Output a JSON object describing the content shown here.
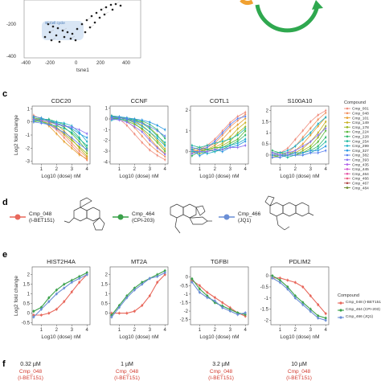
{
  "panels": {
    "c_letter": "c",
    "d_letter": "d",
    "e_letter": "e",
    "f_letter": "f"
  },
  "tsne": {
    "xlabel": "tsne1",
    "ticks_x": [
      "-400",
      "-200",
      "0",
      "200",
      "400"
    ],
    "ticks_y": [
      "-200",
      "-400"
    ],
    "cluster_label": "S/ Cell cycle"
  },
  "colors": {
    "cmp048": "#e8685c",
    "cmp464": "#3aa14a",
    "cmp466": "#6b8fd6",
    "arrow_green": "#2fa84f",
    "arrow_orange": "#f0a030",
    "dose_red": "#d23b2f"
  },
  "compound_legend": {
    "title": "Compound",
    "entries": [
      "Cmp_001",
      "Cmp_048",
      "Cmp_101",
      "Cmp_149",
      "Cmp_178",
      "Cmp_224",
      "Cmp_228",
      "Cmp_254",
      "Cmp_299",
      "Cmp_327",
      "Cmp_382",
      "Cmp_393",
      "Cmp_435",
      "Cmp_445",
      "Cmp_464",
      "Cmp_466",
      "Cmp_467",
      "Cmp_484"
    ],
    "colors": [
      "#f08a7a",
      "#f09060",
      "#e7a030",
      "#c9b020",
      "#98b820",
      "#58b83a",
      "#2eb86a",
      "#20b8a0",
      "#20b0c8",
      "#2a98e0",
      "#5a80f0",
      "#8a70f0",
      "#b060e8",
      "#d055d0",
      "#e455a8",
      "#ec5a82",
      "#b04a4a",
      "#6a8a2a"
    ]
  },
  "legend_e": {
    "title": "Compound",
    "entries": [
      "Cmp_048 (I-BET151)",
      "Cmp_464 (CPI-203)",
      "Cmp_466 (JQ1)"
    ]
  },
  "compounds_d": [
    {
      "name": "Cmp_048",
      "alias": "(I-BET151)"
    },
    {
      "name": "Cmp_464",
      "alias": "(CPI-203)"
    },
    {
      "name": "Cmp_466",
      "alias": "(JQ1)"
    }
  ],
  "panel_f": [
    {
      "dose": "0.32 µM",
      "name": "Cmp_048",
      "alias": "(I-BET151)"
    },
    {
      "dose": "1 µM",
      "name": "Cmp_048",
      "alias": "(I-BET151)"
    },
    {
      "dose": "3.2 µM",
      "name": "Cmp_048",
      "alias": "(I-BET151)"
    },
    {
      "dose": "10 µM",
      "name": "Cmp_048",
      "alias": "(I-BET151)"
    }
  ],
  "chart_data": [
    {
      "type": "line",
      "panel": "c",
      "title": "CDC20",
      "xlabel": "Log10 (dose) nM",
      "ylabel": "Log2 fold change",
      "xlim": [
        0.4,
        4.2
      ],
      "ylim": [
        -3.2,
        1.2
      ],
      "xticks": [
        1,
        2,
        3,
        4
      ],
      "yticks": [
        1,
        0,
        -1,
        -2,
        -3
      ],
      "x": [
        0.5,
        1,
        1.5,
        2,
        2.5,
        3,
        3.5,
        4
      ],
      "series": [
        [
          0.5,
          0.2,
          -0.2,
          -0.6,
          -1.2,
          -1.8,
          -2.4,
          -2.9
        ],
        [
          0.4,
          0.3,
          0.0,
          -0.5,
          -1.0,
          -1.6,
          -2.2,
          -2.7
        ],
        [
          0.3,
          0.1,
          -0.3,
          -0.9,
          -1.5,
          -2.0,
          -2.5,
          -2.8
        ],
        [
          0.2,
          0.2,
          0.1,
          -0.2,
          -0.7,
          -1.3,
          -2.0,
          -2.6
        ],
        [
          0.1,
          0.0,
          -0.1,
          -0.4,
          -0.9,
          -1.4,
          -1.9,
          -2.4
        ],
        [
          0.0,
          0.1,
          0.0,
          -0.1,
          -0.4,
          -0.9,
          -1.5,
          -2.2
        ],
        [
          0.3,
          0.2,
          0.2,
          0.0,
          -0.2,
          -0.6,
          -1.2,
          -2.0
        ],
        [
          0.2,
          0.0,
          -0.2,
          -0.3,
          -0.5,
          -0.8,
          -1.3,
          -1.8
        ],
        [
          0.1,
          0.2,
          0.1,
          0.0,
          -0.1,
          -0.3,
          -0.8,
          -1.5
        ],
        [
          0.4,
          0.3,
          0.1,
          -0.1,
          -0.3,
          -0.5,
          -0.9,
          -1.2
        ],
        [
          0.0,
          -0.1,
          -0.2,
          -0.5,
          -0.8,
          -1.2,
          -1.7,
          -2.1
        ],
        [
          0.2,
          0.1,
          0.0,
          -0.2,
          -0.3,
          -0.4,
          -0.6,
          -0.9
        ]
      ]
    },
    {
      "type": "line",
      "panel": "c",
      "title": "CCNF",
      "xlabel": "Log10 (dose) nM",
      "ylabel": "",
      "xlim": [
        0.4,
        4.2
      ],
      "ylim": [
        -4.2,
        1.2
      ],
      "xticks": [
        1,
        2,
        3,
        4
      ],
      "yticks": [
        1,
        0,
        -1,
        -2,
        -3,
        -4
      ],
      "x": [
        0.5,
        1,
        1.5,
        2,
        2.5,
        3,
        3.5,
        4
      ],
      "series": [
        [
          0.3,
          0.0,
          -0.6,
          -1.4,
          -2.2,
          -2.9,
          -3.4,
          -3.8
        ],
        [
          0.2,
          0.2,
          -0.2,
          -0.8,
          -1.6,
          -2.4,
          -3.0,
          -3.5
        ],
        [
          0.1,
          0.1,
          0.0,
          -0.4,
          -1.0,
          -1.8,
          -2.6,
          -3.2
        ],
        [
          0.0,
          0.0,
          -0.1,
          -0.2,
          -0.6,
          -1.2,
          -2.0,
          -2.8
        ],
        [
          0.2,
          0.1,
          0.1,
          0.0,
          -0.3,
          -0.8,
          -1.5,
          -2.4
        ],
        [
          0.1,
          0.0,
          -0.2,
          -0.5,
          -0.9,
          -1.5,
          -2.2,
          -3.0
        ],
        [
          0.0,
          0.1,
          0.0,
          -0.1,
          -0.2,
          -0.5,
          -1.0,
          -1.8
        ],
        [
          0.3,
          0.2,
          0.1,
          -0.1,
          -0.4,
          -0.9,
          -1.6,
          -2.2
        ],
        [
          -0.1,
          0.0,
          -0.1,
          -0.3,
          -0.7,
          -1.2,
          -1.8,
          -2.5
        ],
        [
          0.2,
          0.2,
          0.1,
          0.0,
          -0.1,
          -0.3,
          -0.6,
          -1.0
        ],
        [
          0.1,
          0.1,
          0.0,
          -0.2,
          -0.4,
          -0.7,
          -1.1,
          -1.6
        ],
        [
          0.0,
          -0.1,
          -0.3,
          -0.7,
          -1.2,
          -2.0,
          -2.7,
          -3.3
        ]
      ]
    },
    {
      "type": "line",
      "panel": "c",
      "title": "COTL1",
      "xlabel": "Log10 (dose) nM",
      "ylabel": "",
      "xlim": [
        0.4,
        4.2
      ],
      "ylim": [
        -0.6,
        2.2
      ],
      "xticks": [
        1,
        2,
        3,
        4
      ],
      "yticks": [
        2,
        1,
        0
      ],
      "x": [
        0.5,
        1,
        1.5,
        2,
        2.5,
        3,
        3.5,
        4
      ],
      "series": [
        [
          0.0,
          0.1,
          0.3,
          0.6,
          1.0,
          1.4,
          1.7,
          1.9
        ],
        [
          0.1,
          0.0,
          0.2,
          0.4,
          0.8,
          1.2,
          1.5,
          1.8
        ],
        [
          -0.1,
          0.1,
          0.1,
          0.3,
          0.6,
          1.0,
          1.3,
          1.6
        ],
        [
          0.2,
          0.1,
          0.0,
          0.2,
          0.4,
          0.7,
          1.1,
          1.4
        ],
        [
          0.0,
          -0.1,
          0.0,
          0.1,
          0.3,
          0.5,
          0.9,
          1.2
        ],
        [
          0.1,
          0.2,
          0.1,
          0.2,
          0.2,
          0.4,
          0.6,
          1.0
        ],
        [
          -0.2,
          0.0,
          0.1,
          0.0,
          0.1,
          0.3,
          0.5,
          0.8
        ],
        [
          0.3,
          0.2,
          0.3,
          0.4,
          0.5,
          0.6,
          0.8,
          1.1
        ],
        [
          0.0,
          0.0,
          -0.1,
          0.0,
          0.2,
          0.3,
          0.4,
          0.6
        ],
        [
          0.1,
          -0.2,
          0.0,
          0.1,
          0.0,
          0.2,
          0.3,
          0.5
        ],
        [
          0.2,
          0.1,
          0.2,
          0.5,
          0.9,
          1.3,
          1.6,
          1.7
        ],
        [
          -0.1,
          0.0,
          0.0,
          0.1,
          0.1,
          0.2,
          0.2,
          0.3
        ]
      ]
    },
    {
      "type": "line",
      "panel": "c",
      "title": "S100A10",
      "xlabel": "Log10 (dose) nM",
      "ylabel": "",
      "xlim": [
        0.4,
        4.2
      ],
      "ylim": [
        -0.4,
        2.2
      ],
      "xticks": [
        1,
        2,
        3,
        4
      ],
      "yticks": [
        2,
        1.5,
        1,
        0.5,
        0
      ],
      "x": [
        0.5,
        1,
        1.5,
        2,
        2.5,
        3,
        3.5,
        4
      ],
      "series": [
        [
          0.0,
          0.1,
          0.3,
          0.7,
          1.1,
          1.5,
          1.8,
          2.0
        ],
        [
          0.1,
          0.0,
          0.1,
          0.4,
          0.8,
          1.2,
          1.6,
          1.9
        ],
        [
          0.0,
          0.0,
          0.0,
          0.2,
          0.5,
          0.9,
          1.3,
          1.7
        ],
        [
          -0.1,
          0.0,
          0.0,
          0.1,
          0.3,
          0.6,
          1.0,
          1.5
        ],
        [
          0.1,
          0.1,
          0.0,
          0.0,
          0.2,
          0.4,
          0.8,
          1.3
        ],
        [
          0.0,
          -0.1,
          0.0,
          0.0,
          0.1,
          0.3,
          0.6,
          1.1
        ],
        [
          0.2,
          0.1,
          0.1,
          0.1,
          0.1,
          0.2,
          0.4,
          0.8
        ],
        [
          0.0,
          0.0,
          -0.1,
          0.0,
          0.0,
          0.1,
          0.3,
          0.6
        ],
        [
          0.1,
          0.1,
          0.2,
          0.4,
          0.7,
          1.0,
          1.4,
          1.7
        ],
        [
          0.0,
          0.0,
          0.0,
          0.1,
          0.1,
          0.2,
          0.2,
          0.4
        ],
        [
          -0.1,
          -0.1,
          0.0,
          0.0,
          0.0,
          0.1,
          0.1,
          0.2
        ],
        [
          0.1,
          0.0,
          0.1,
          0.2,
          0.4,
          0.6,
          0.9,
          1.2
        ]
      ]
    },
    {
      "type": "line",
      "panel": "e",
      "title": "HIST2H4A",
      "xlabel": "Log10 (dose) nM",
      "ylabel": "Log2 fold change",
      "xlim": [
        0.4,
        4.2
      ],
      "ylim": [
        -0.6,
        2.4
      ],
      "xticks": [
        1,
        2,
        3,
        4
      ],
      "yticks": [
        2,
        1.5,
        1,
        0.5,
        0,
        -0.5
      ],
      "x": [
        0.5,
        1,
        1.5,
        2,
        2.5,
        3,
        3.5,
        4
      ],
      "series": [
        {
          "name": "Cmp_048",
          "values": [
            -0.1,
            -0.1,
            0.0,
            0.2,
            0.6,
            1.1,
            1.6,
            2.0
          ]
        },
        {
          "name": "Cmp_464",
          "values": [
            0.1,
            0.3,
            0.8,
            1.2,
            1.5,
            1.7,
            1.9,
            2.1
          ]
        },
        {
          "name": "Cmp_466",
          "values": [
            -0.2,
            0.2,
            0.6,
            1.0,
            1.3,
            1.6,
            1.8,
            2.0
          ]
        }
      ]
    },
    {
      "type": "line",
      "panel": "e",
      "title": "MT2A",
      "xlabel": "Log10 (dose) nM",
      "ylabel": "",
      "xlim": [
        0.4,
        4.2
      ],
      "ylim": [
        -0.6,
        2.4
      ],
      "xticks": [
        1,
        2,
        3,
        4
      ],
      "yticks": [
        2,
        1.5,
        1,
        0.5,
        0
      ],
      "x": [
        0.5,
        1,
        1.5,
        2,
        2.5,
        3,
        3.5,
        4
      ],
      "series": [
        {
          "name": "Cmp_048",
          "values": [
            0.0,
            0.0,
            0.0,
            0.1,
            0.4,
            0.9,
            1.6,
            2.0
          ]
        },
        {
          "name": "Cmp_464",
          "values": [
            -0.1,
            0.4,
            0.9,
            1.3,
            1.6,
            1.8,
            2.0,
            2.2
          ]
        },
        {
          "name": "Cmp_466",
          "values": [
            -0.2,
            0.3,
            0.8,
            1.2,
            1.5,
            1.8,
            1.9,
            2.1
          ]
        }
      ]
    },
    {
      "type": "line",
      "panel": "e",
      "title": "TGFBI",
      "xlabel": "Log10 (dose) nM",
      "ylabel": "",
      "xlim": [
        0.4,
        4.2
      ],
      "ylim": [
        -2.8,
        0.6
      ],
      "xticks": [
        1,
        2,
        3,
        4
      ],
      "yticks": [
        0,
        -0.5,
        -1,
        -1.5,
        -2,
        -2.5
      ],
      "x": [
        0.5,
        1,
        1.5,
        2,
        2.5,
        3,
        3.5,
        4
      ],
      "series": [
        {
          "name": "Cmp_048",
          "values": [
            -0.2,
            -0.5,
            -0.9,
            -1.2,
            -1.5,
            -1.8,
            -2.1,
            -2.3
          ]
        },
        {
          "name": "Cmp_464",
          "values": [
            -0.1,
            -0.7,
            -1.1,
            -1.5,
            -1.7,
            -1.9,
            -2.1,
            -2.2
          ]
        },
        {
          "name": "Cmp_466",
          "values": [
            -0.3,
            -0.9,
            -1.2,
            -1.4,
            -1.8,
            -2.0,
            -2.2,
            -2.1
          ]
        }
      ]
    },
    {
      "type": "line",
      "panel": "e",
      "title": "PDLIM2",
      "xlabel": "Log10 (dose) nM",
      "ylabel": "",
      "xlim": [
        0.4,
        4.2
      ],
      "ylim": [
        -2.2,
        0.4
      ],
      "xticks": [
        1,
        2,
        3,
        4
      ],
      "yticks": [
        0,
        -0.5,
        -1,
        -1.5,
        -2
      ],
      "x": [
        0.5,
        1,
        1.5,
        2,
        2.5,
        3,
        3.5,
        4
      ],
      "series": [
        {
          "name": "Cmp_048",
          "values": [
            -0.1,
            -0.1,
            -0.2,
            -0.3,
            -0.5,
            -0.9,
            -1.3,
            -1.7
          ]
        },
        {
          "name": "Cmp_464",
          "values": [
            0.0,
            -0.2,
            -0.5,
            -0.9,
            -1.2,
            -1.5,
            -1.8,
            -1.9
          ]
        },
        {
          "name": "Cmp_466",
          "values": [
            -0.1,
            -0.3,
            -0.6,
            -1.0,
            -1.3,
            -1.6,
            -1.9,
            -2.0
          ]
        }
      ]
    }
  ]
}
